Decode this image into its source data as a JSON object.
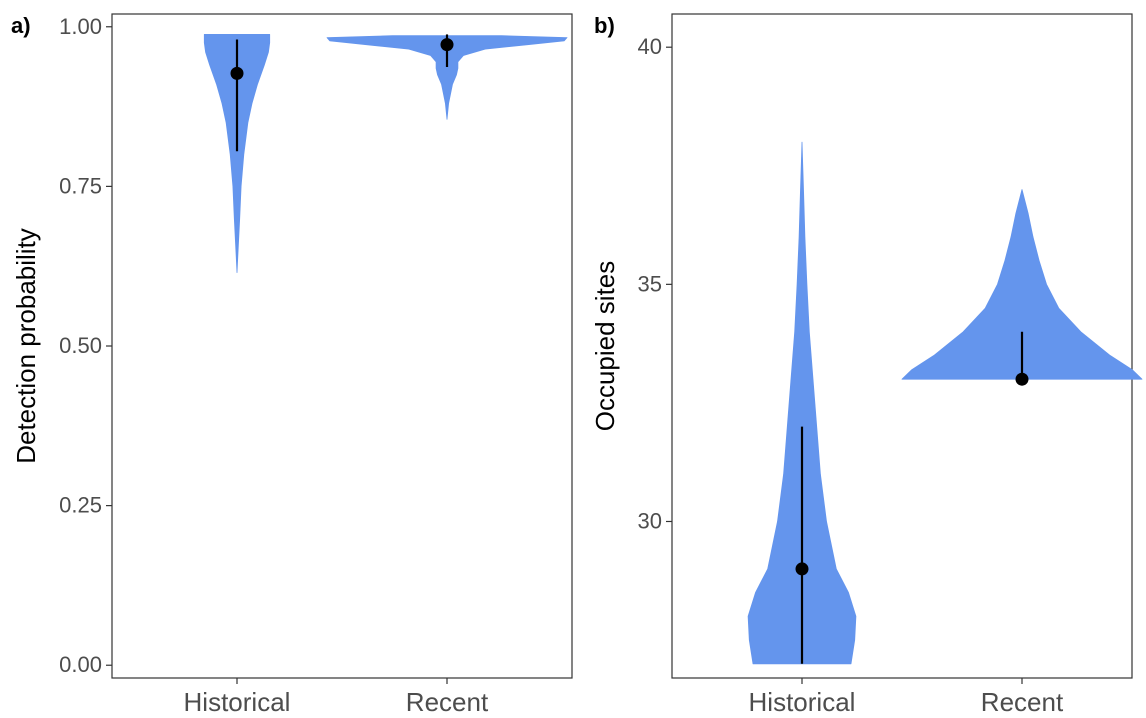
{
  "chart_data": [
    {
      "type": "violin",
      "panel_label": "a)",
      "xlabel": "",
      "ylabel": "Detection probability",
      "categories": [
        "Historical",
        "Recent"
      ],
      "ylim": [
        -0.02,
        1.02
      ],
      "yticks": [
        0.0,
        0.25,
        0.5,
        0.75,
        1.0
      ],
      "ytick_labels": [
        "0.00",
        "0.25",
        "0.50",
        "0.75",
        "1.00"
      ],
      "grid": false,
      "fill_color": "#6495ED",
      "series": [
        {
          "category": "Historical",
          "point": 0.927,
          "interval": [
            0.805,
            0.98
          ],
          "violin_range": [
            0.615,
            0.988
          ],
          "density": [
            [
              0.615,
              0.0
            ],
            [
              0.65,
              0.004
            ],
            [
              0.7,
              0.01
            ],
            [
              0.75,
              0.015
            ],
            [
              0.8,
              0.025
            ],
            [
              0.85,
              0.04
            ],
            [
              0.88,
              0.055
            ],
            [
              0.91,
              0.075
            ],
            [
              0.94,
              0.1
            ],
            [
              0.96,
              0.115
            ],
            [
              0.975,
              0.12
            ],
            [
              0.988,
              0.12
            ]
          ]
        },
        {
          "category": "Recent",
          "point": 0.972,
          "interval": [
            0.937,
            0.988
          ],
          "violin_range": [
            0.855,
            0.986
          ],
          "density": [
            [
              0.855,
              0.0
            ],
            [
              0.88,
              0.006
            ],
            [
              0.91,
              0.02
            ],
            [
              0.925,
              0.035
            ],
            [
              0.935,
              0.04
            ],
            [
              0.945,
              0.04
            ],
            [
              0.955,
              0.06
            ],
            [
              0.965,
              0.14
            ],
            [
              0.972,
              0.3
            ],
            [
              0.978,
              0.43
            ],
            [
              0.983,
              0.44
            ],
            [
              0.986,
              0.2
            ]
          ]
        }
      ]
    },
    {
      "type": "violin",
      "panel_label": "b)",
      "xlabel": "",
      "ylabel": "Occupied sites",
      "categories": [
        "Historical",
        "Recent"
      ],
      "ylim": [
        26.7,
        40.7
      ],
      "yticks": [
        30,
        35,
        40
      ],
      "ytick_labels": [
        "30",
        "35",
        "40"
      ],
      "grid": false,
      "fill_color": "#6495ED",
      "series": [
        {
          "category": "Historical",
          "point": 29,
          "interval": [
            27,
            32
          ],
          "violin_range": [
            27,
            38
          ],
          "density": [
            [
              27,
              0.2
            ],
            [
              27.5,
              0.215
            ],
            [
              28,
              0.22
            ],
            [
              28.5,
              0.19
            ],
            [
              29,
              0.14
            ],
            [
              29.5,
              0.12
            ],
            [
              30,
              0.1
            ],
            [
              31,
              0.075
            ],
            [
              32,
              0.06
            ],
            [
              33,
              0.045
            ],
            [
              34,
              0.03
            ],
            [
              35,
              0.02
            ],
            [
              36,
              0.012
            ],
            [
              37,
              0.006
            ],
            [
              38,
              0.0
            ]
          ]
        },
        {
          "category": "Recent",
          "point": 33,
          "interval": [
            33,
            34
          ],
          "violin_range": [
            33,
            37
          ],
          "density": [
            [
              33,
              0.49
            ],
            [
              33.2,
              0.45
            ],
            [
              33.5,
              0.36
            ],
            [
              34,
              0.24
            ],
            [
              34.5,
              0.15
            ],
            [
              35,
              0.1
            ],
            [
              35.5,
              0.07
            ],
            [
              36,
              0.045
            ],
            [
              36.5,
              0.025
            ],
            [
              37,
              0.0
            ]
          ]
        }
      ]
    }
  ]
}
